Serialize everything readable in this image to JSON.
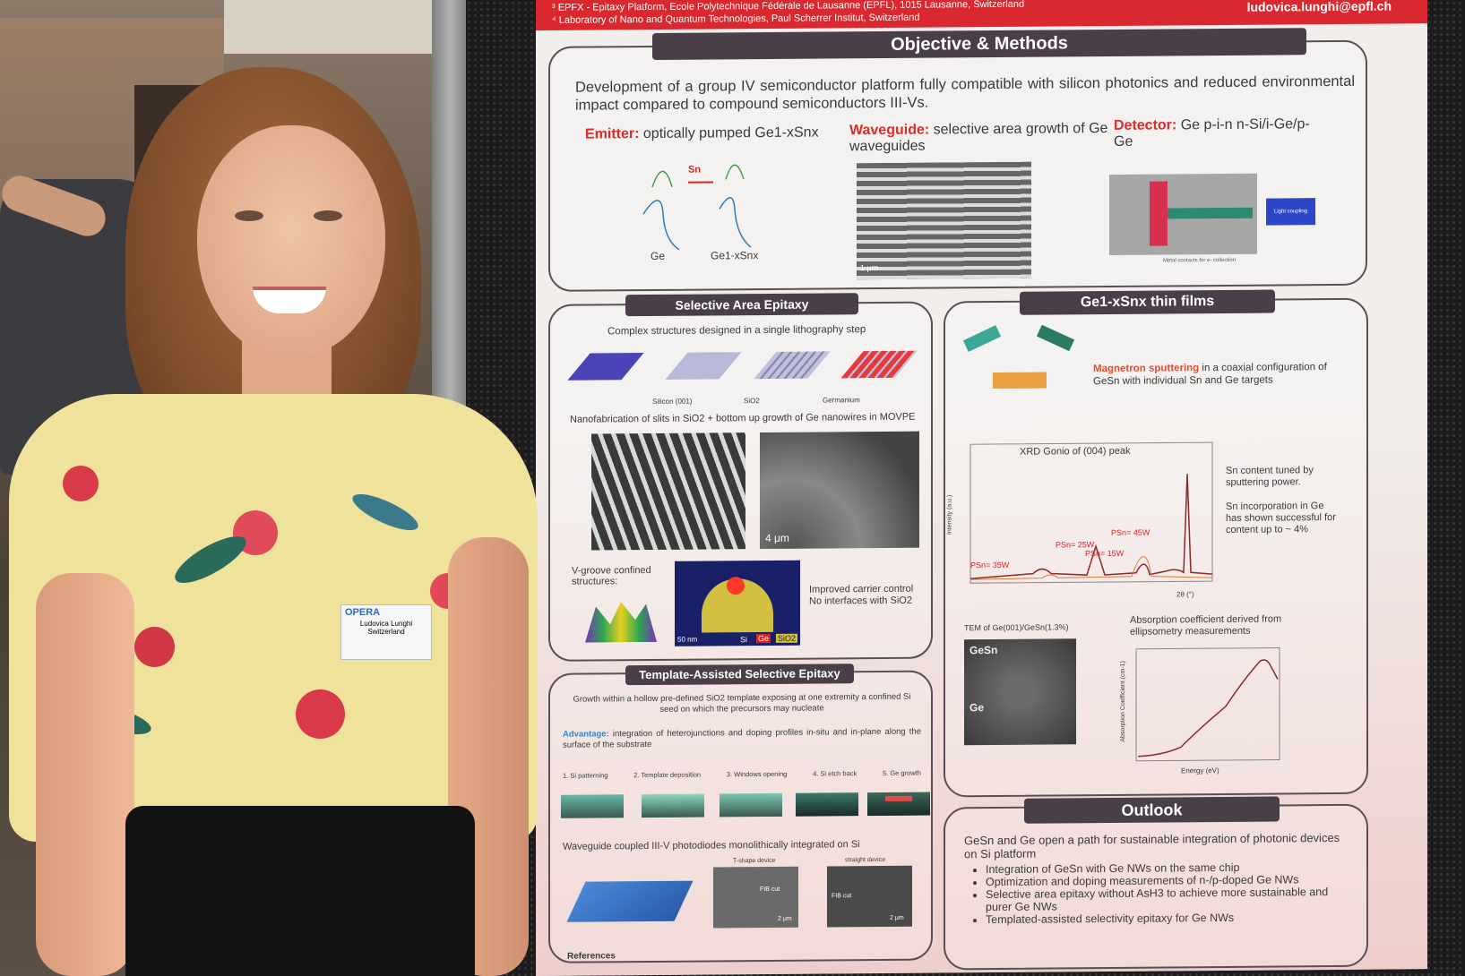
{
  "poster": {
    "header": {
      "affiliation_3": "³ EPFX - Epitaxy Platform, Ecole Polytechnique Fédérale de Lausanne (EPFL), 1015 Lausanne, Switzerland",
      "affiliation_4": "⁴ Laboratory of Nano and Quantum Technologies, Paul Scherrer Institut, Switzerland",
      "email": "ludovica.lunghi@epfl.ch"
    },
    "objective": {
      "title": "Objective & Methods",
      "intro": "Development of a group IV semiconductor platform fully compatible with silicon photonics and reduced environmental impact compared to compound semiconductors III-Vs.",
      "emitter_label": "Emitter:",
      "emitter_text": "optically pumped Ge1-xSnx",
      "waveguide_label": "Waveguide:",
      "waveguide_text": "selective area growth of Ge waveguides",
      "detector_label": "Detector:",
      "detector_text": "Ge p-i-n n-Si/i-Ge/p-Ge",
      "band_left": "Ge",
      "band_right": "Ge1-xSnx",
      "band_arrow": "Sn",
      "scale": "1 μm",
      "light_coupling": "Light coupling",
      "metal_contacts": "Metal contacts for e- collection"
    },
    "sae": {
      "title": "Selective Area Epitaxy",
      "subtitle": "Complex structures designed in a single lithography step",
      "legend_si": "Silicon (001)",
      "legend_sio2": "SiO2",
      "legend_ge": "Germanium",
      "nanofab": "Nanofabrication of slits in SiO2 + bottom up growth of Ge nanowires in MOVPE",
      "scale": "4 μm",
      "vgroove": "V-groove confined structures:",
      "bullet1": "Improved carrier control",
      "bullet2": "No interfaces with SiO2",
      "tem_scale": "50 nm",
      "tem_si": "Si",
      "tem_ge": "Ge",
      "tem_sio2": "SiO2"
    },
    "films": {
      "title": "Ge1-xSnx thin films",
      "sputter_label": "Magnetron sputtering",
      "sputter_text": "in a coaxial configuration of GeSn with individual Sn and Ge targets",
      "xrd_title": "XRD Gonio of (004) peak",
      "sn_tuned": "Sn content tuned by sputtering power.",
      "sn_incorp": "Sn incorporation in Ge has shown successful for content up to ~ 4%",
      "p35": "PSn= 35W",
      "p25": "PSn= 25W",
      "p15": "PSn= 15W",
      "p45": "PSn= 45W",
      "tem_label": "TEM of Ge(001)/GeSn(1.3%)",
      "tem_gesn": "GeSn",
      "tem_ge": "Ge",
      "abs_title": "Absorption coefficient derived from ellipsometry measurements",
      "abs_xlabel": "Energy (eV)",
      "abs_ylabel": "Absorption Coefficient (cm-1)",
      "xrd_xlabel": "2θ (°)",
      "xrd_ylabel": "Intensity (a.u.)"
    },
    "tase": {
      "title": "Template-Assisted Selective Epitaxy",
      "growth": "Growth within a hollow pre-defined SiO2 template exposing at one extremity a confined Si seed on which the precursors may nucleate",
      "adv_label": "Advantage:",
      "adv_text": "integration of heterojunctions and doping profiles in-situ and in-plane along the surface of the substrate",
      "steps": [
        "1. Si patterning",
        "2. Template deposition",
        "3. Windows opening",
        "4. Si etch back",
        "5. Ge growth"
      ],
      "waveguide": "Waveguide coupled III-V photodiodes monolithically integrated on Si",
      "tshape": "T-shape device",
      "straight": "straight device",
      "fib": "FIB cut",
      "scale": "2 μm"
    },
    "outlook": {
      "title": "Outlook",
      "intro": "GeSn and Ge open a path for sustainable integration of photonic devices on Si platform",
      "bullets": [
        "Integration of GeSn with Ge NWs on the same chip",
        "Optimization and doping measurements of n-/p-doped Ge NWs",
        "Selective area epitaxy without AsH3 to achieve more sustainable and purer Ge NWs",
        "Templated-assisted selectivity epitaxy for Ge NWs"
      ]
    },
    "references": "References"
  },
  "badge": {
    "brand": "OPERA",
    "name": "Ludovica Lunghi",
    "country": "Switzerland"
  }
}
